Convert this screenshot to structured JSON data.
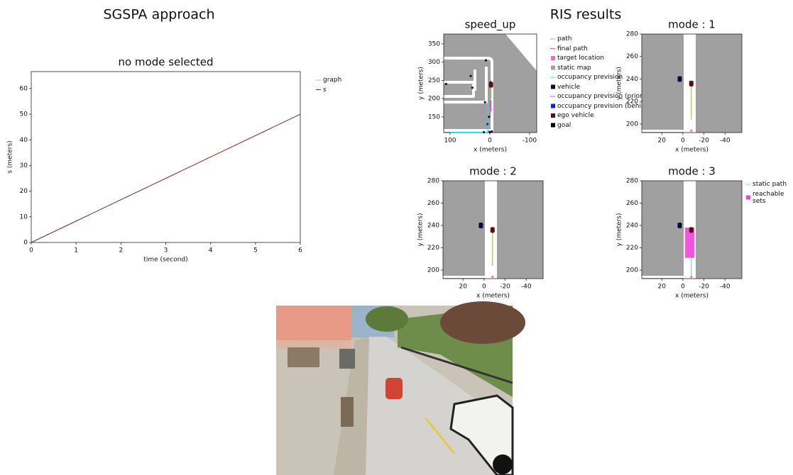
{
  "header": {
    "left_title": "SGSPA approach",
    "right_title": "RIS results"
  },
  "chart_data": [
    {
      "type": "line",
      "title": "no mode selected",
      "x_label": "time (second)",
      "y_label": "s (meters)",
      "x": [
        0,
        6
      ],
      "xlim": [
        0,
        6
      ],
      "xticks": [
        0,
        1,
        2,
        3,
        4,
        5,
        6
      ],
      "ylim": [
        0,
        66.6
      ],
      "yticks": [
        0,
        10,
        20,
        30,
        40,
        50,
        60
      ],
      "series": [
        {
          "name": "graph",
          "color": "#f4a0a0",
          "values": [
            0,
            50
          ]
        },
        {
          "name": "s",
          "color": "#7a3030",
          "values": [
            0,
            50
          ]
        }
      ]
    },
    {
      "type": "map",
      "title": "speed_up",
      "x_label": "x (meters)",
      "y_label": "y (meters)",
      "xlim": [
        116,
        -118
      ],
      "xticks": [
        100,
        0,
        -100
      ],
      "ylim": [
        107,
        377
      ],
      "yticks": [
        150,
        200,
        250,
        300,
        350
      ],
      "series": [
        {
          "name": "path",
          "color": "#9acd32",
          "mark": "line",
          "x": [
            -3,
            -3
          ],
          "values": [
            200,
            238
          ]
        },
        {
          "name": "final path",
          "color": "#e06080",
          "mark": "line",
          "x": [
            -1,
            -1
          ],
          "values": [
            150,
            200
          ]
        },
        {
          "name": "target location",
          "color": "#ff66cc",
          "mark": "point",
          "x": [
            0,
            2
          ],
          "values": [
            170,
            110
          ]
        },
        {
          "name": "static map",
          "color": "#a0a0a0",
          "mark": "map"
        },
        {
          "name": "occupancy prevision",
          "color": "#22dddd",
          "mark": "line",
          "x": [
            100,
            5,
            5
          ],
          "values": [
            108,
            108,
            190
          ]
        },
        {
          "name": "vehicle",
          "color": "#0a0a40",
          "mark": "point",
          "x": [
            110,
            48,
            44,
            10,
            12,
            -2,
            2,
            15,
            -5
          ],
          "values": [
            240,
            262,
            230,
            305,
            190,
            245,
            150,
            108,
            110
          ]
        },
        {
          "name": "occupancy prevision (priority)",
          "color": "#cc44ee",
          "mark": "line",
          "x": [
            -3,
            -3
          ],
          "values": [
            165,
            195
          ]
        },
        {
          "name": "occupancy prevision (behind)",
          "color": "#1122dd",
          "mark": "point",
          "x": [
            6
          ],
          "values": [
            130
          ]
        },
        {
          "name": "ego vehicle",
          "color": "#5a0f0f",
          "mark": "square",
          "x": [
            -3
          ],
          "values": [
            238
          ]
        },
        {
          "name": "goal",
          "color": "#000000",
          "mark": "point",
          "x": [
            0
          ],
          "values": [
            108
          ]
        }
      ]
    },
    {
      "type": "map",
      "title": "mode : 1",
      "x_label": "x (meters)",
      "y_label": "y (meters)",
      "xlim": [
        39,
        -56
      ],
      "xticks": [
        20,
        0,
        -20,
        -40
      ],
      "ylim": [
        192.4,
        280
      ],
      "yticks": [
        200,
        220,
        240,
        260,
        280
      ],
      "series": [
        {
          "color": "#a0a0a0",
          "mark": "map"
        },
        {
          "color": "#9acd32",
          "mark": "line",
          "x": [
            -8,
            -8
          ],
          "values": [
            204,
            235
          ]
        },
        {
          "color": "#0a0a40",
          "mark": "square",
          "x": [
            3
          ],
          "values": [
            240
          ]
        },
        {
          "color": "#5a0f0f",
          "mark": "square",
          "x": [
            -8
          ],
          "values": [
            236
          ]
        },
        {
          "color": "#ff66cc",
          "mark": "point",
          "x": [
            -8
          ],
          "values": [
            194
          ]
        }
      ]
    },
    {
      "type": "map",
      "title": "mode : 2",
      "x_label": "x (meters)",
      "y_label": "y (meters)",
      "xlim": [
        39,
        -56
      ],
      "xticks": [
        20,
        0,
        -20,
        -40
      ],
      "ylim": [
        192.4,
        280
      ],
      "yticks": [
        200,
        220,
        240,
        260,
        280
      ],
      "series": [
        {
          "color": "#a0a0a0",
          "mark": "map"
        },
        {
          "color": "#9acd32",
          "mark": "line",
          "x": [
            -8,
            -8
          ],
          "values": [
            204,
            235
          ]
        },
        {
          "color": "#0a0a40",
          "mark": "square",
          "x": [
            3
          ],
          "values": [
            240
          ]
        },
        {
          "color": "#5a0f0f",
          "mark": "square",
          "x": [
            -8
          ],
          "values": [
            236
          ]
        },
        {
          "color": "#ff66cc",
          "mark": "point",
          "x": [
            -8
          ],
          "values": [
            194
          ]
        }
      ]
    },
    {
      "type": "map",
      "title": "mode : 3",
      "x_label": "x (meters)",
      "y_label": "y (meters)",
      "xlim": [
        39,
        -56
      ],
      "xticks": [
        20,
        0,
        -20,
        -40
      ],
      "ylim": [
        192.4,
        280
      ],
      "yticks": [
        200,
        220,
        240,
        260,
        280
      ],
      "series": [
        {
          "color": "#a0a0a0",
          "mark": "map"
        },
        {
          "name": "static path",
          "color": "#66ddee",
          "mark": "line",
          "x": [
            -8,
            -8
          ],
          "values": [
            195,
            232
          ]
        },
        {
          "name": "reachable sets",
          "color": "#ee44dd",
          "mark": "area",
          "x": [
            -2,
            -2,
            -11,
            -11
          ],
          "values": [
            211,
            238,
            238,
            211
          ]
        },
        {
          "color": "#0a0a40",
          "mark": "square",
          "x": [
            3
          ],
          "values": [
            240
          ]
        },
        {
          "color": "#5a0f0f",
          "mark": "square",
          "x": [
            -8
          ],
          "values": [
            236
          ]
        },
        {
          "color": "#ff66cc",
          "mark": "point",
          "x": [
            -8
          ],
          "values": [
            194
          ]
        }
      ]
    }
  ]
}
